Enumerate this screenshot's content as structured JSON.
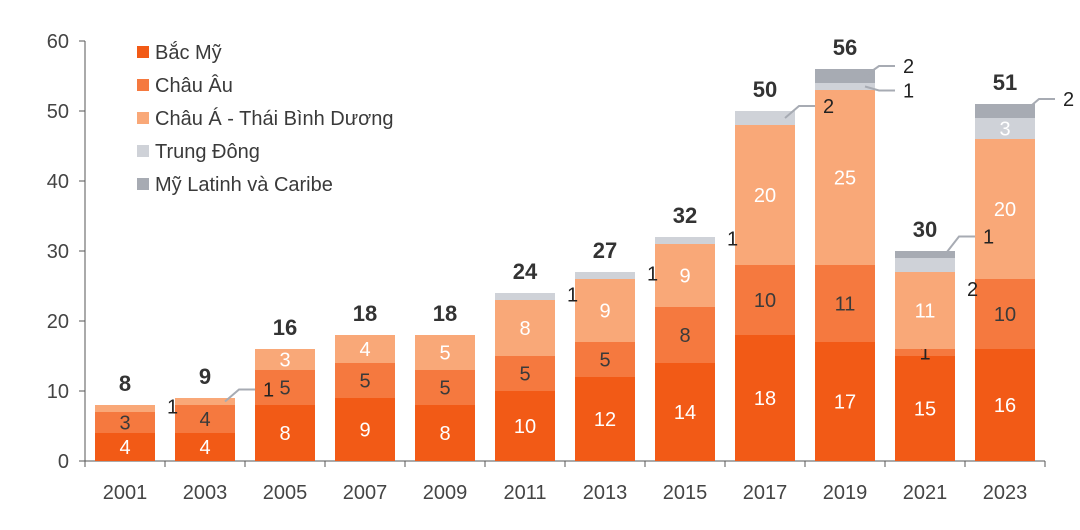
{
  "chart_data": {
    "type": "bar",
    "stacked": true,
    "title": "",
    "xlabel": "",
    "ylabel": "",
    "ylim": [
      0,
      60
    ],
    "yticks": [
      0,
      10,
      20,
      30,
      40,
      50,
      60
    ],
    "grid": false,
    "legend_position": "top-left",
    "categories": [
      "2001",
      "2003",
      "2005",
      "2007",
      "2009",
      "2011",
      "2013",
      "2015",
      "2017",
      "2019",
      "2021",
      "2023"
    ],
    "series": [
      {
        "name": "Bắc Mỹ",
        "color": "#f25a16",
        "values": [
          4,
          4,
          8,
          9,
          8,
          10,
          12,
          14,
          18,
          17,
          15,
          16
        ]
      },
      {
        "name": "Châu Âu",
        "color": "#f5793f",
        "values": [
          3,
          4,
          5,
          5,
          5,
          5,
          5,
          8,
          10,
          11,
          1,
          10
        ]
      },
      {
        "name": "Châu Á - Thái Bình Dương",
        "color": "#f9a878",
        "values": [
          1,
          1,
          3,
          4,
          5,
          8,
          9,
          9,
          20,
          25,
          11,
          20
        ]
      },
      {
        "name": "Trung Đông",
        "color": "#cfd2d8",
        "values": [
          0,
          0,
          0,
          0,
          0,
          1,
          1,
          1,
          2,
          1,
          2,
          3
        ]
      },
      {
        "name": "Mỹ Latinh và Caribe",
        "color": "#a7abb3",
        "values": [
          0,
          0,
          0,
          0,
          0,
          0,
          0,
          0,
          0,
          2,
          1,
          2
        ]
      }
    ],
    "totals": [
      "8",
      "9",
      "16",
      "18",
      "18",
      "24",
      "27",
      "32",
      "50",
      "56",
      "30",
      "51"
    ],
    "segment_labels": [
      [
        "4",
        "3",
        "",
        "",
        ""
      ],
      [
        "4",
        "4",
        "",
        "",
        ""
      ],
      [
        "8",
        "5",
        "3",
        "",
        ""
      ],
      [
        "9",
        "5",
        "4",
        "",
        ""
      ],
      [
        "8",
        "5",
        "5",
        "",
        ""
      ],
      [
        "10",
        "5",
        "8",
        "",
        ""
      ],
      [
        "12",
        "5",
        "9",
        "",
        ""
      ],
      [
        "14",
        "8",
        "9",
        "",
        ""
      ],
      [
        "18",
        "10",
        "20",
        "",
        ""
      ],
      [
        "17",
        "11",
        "25",
        "",
        ""
      ],
      [
        "15",
        "1",
        "11",
        "",
        ""
      ],
      [
        "16",
        "10",
        "20",
        "3",
        ""
      ]
    ],
    "callouts": [
      {
        "category": 0,
        "text": "1",
        "series": 2,
        "line": false
      },
      {
        "category": 1,
        "text": "1",
        "series": 2,
        "line": true
      },
      {
        "category": 5,
        "text": "1",
        "series": 3,
        "line": false
      },
      {
        "category": 6,
        "text": "1",
        "series": 3,
        "line": false
      },
      {
        "category": 7,
        "text": "1",
        "series": 3,
        "line": false
      },
      {
        "category": 8,
        "text": "2",
        "series": 3,
        "line": true
      },
      {
        "category": 9,
        "text": "1",
        "series": 3,
        "line": true
      },
      {
        "category": 9,
        "text": "2",
        "series": 4,
        "line": true
      },
      {
        "category": 10,
        "text": "2",
        "series": 3,
        "line": false
      },
      {
        "category": 10,
        "text": "1",
        "series": 4,
        "line": true
      },
      {
        "category": 11,
        "text": "2",
        "series": 4,
        "line": true
      }
    ]
  }
}
